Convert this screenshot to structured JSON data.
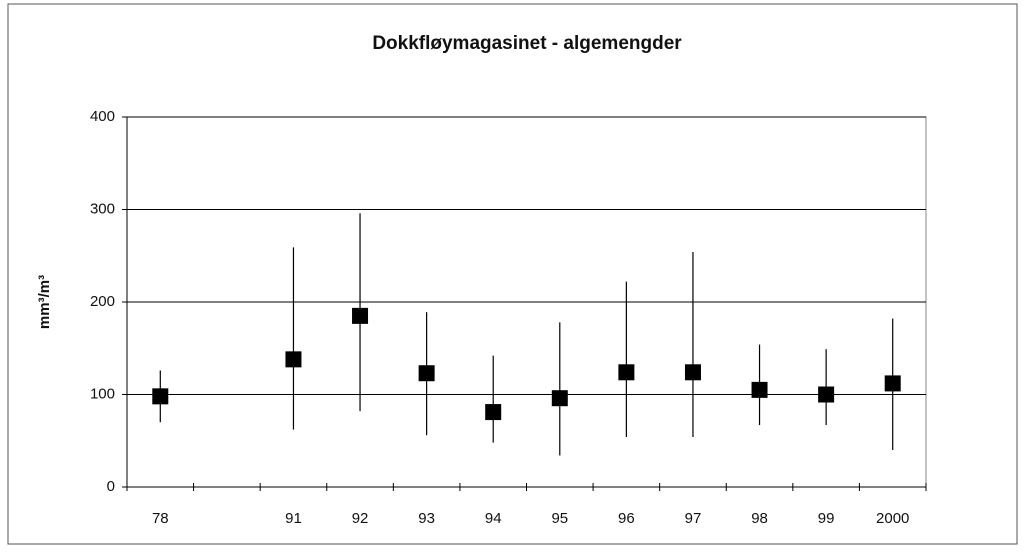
{
  "chart_data": {
    "type": "scatter-range",
    "title": "Dokkfløymagasinet - algemengder",
    "y_label": "mm³/m³",
    "categories": [
      "78",
      null,
      "91",
      "92",
      "93",
      "94",
      "95",
      "96",
      "97",
      "98",
      "99",
      "2000"
    ],
    "series": [
      {
        "color": "#000000",
        "values": [
          98,
          null,
          138,
          185,
          123,
          81,
          96,
          124,
          124,
          105,
          100,
          112
        ],
        "low": [
          70,
          null,
          62,
          82,
          56,
          48,
          34,
          54,
          54,
          67,
          67,
          40
        ],
        "high": [
          126,
          null,
          259,
          296,
          189,
          142,
          178,
          222,
          254,
          154,
          149,
          182
        ]
      }
    ],
    "ylim": [
      0,
      400
    ],
    "yticks": [
      0,
      100,
      200,
      300,
      400
    ],
    "grid": true
  }
}
